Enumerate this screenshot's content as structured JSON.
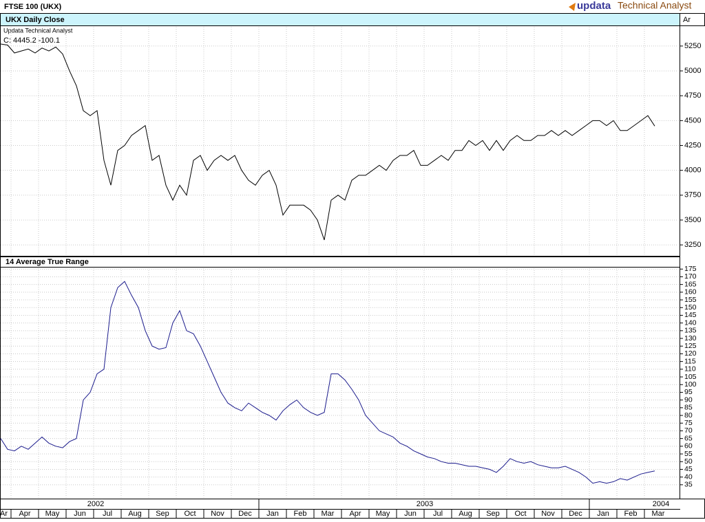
{
  "header": {
    "title": "FTSE 100 (UKX)",
    "logo_brand": "updata",
    "logo_product": "Technical Analyst",
    "axis_header": "Ar",
    "source": "Updata Technical Analyst",
    "readout": "C: 4445.2 -100.1"
  },
  "chart_data": [
    {
      "type": "line",
      "title": "UKX Daily Close",
      "categories": [
        "Ar",
        null,
        "Apr",
        null,
        null,
        null,
        "May",
        null,
        null,
        null,
        "Jun",
        null,
        null,
        null,
        "Jul",
        null,
        null,
        null,
        "Aug",
        null,
        null,
        null,
        "Sep",
        null,
        null,
        null,
        "Oct",
        null,
        null,
        null,
        "Nov",
        null,
        null,
        null,
        "Dec",
        null,
        null,
        null,
        "Jan",
        null,
        null,
        null,
        "Feb",
        null,
        null,
        null,
        "Mar",
        null,
        null,
        null,
        "Apr",
        null,
        null,
        null,
        "May",
        null,
        null,
        null,
        "Jun",
        null,
        null,
        null,
        "Jul",
        null,
        null,
        null,
        "Aug",
        null,
        null,
        null,
        "Sep",
        null,
        null,
        null,
        "Oct",
        null,
        null,
        null,
        "Nov",
        null,
        null,
        null,
        "Dec",
        null,
        null,
        null,
        "Jan",
        null,
        null,
        null,
        "Feb",
        null,
        null,
        null,
        "Mar",
        null,
        null,
        null
      ],
      "series": [
        {
          "name": "UKX",
          "color": "#000000",
          "values": [
            5270,
            5260,
            5180,
            5200,
            5220,
            5180,
            5230,
            5200,
            5240,
            5170,
            5000,
            4850,
            4600,
            4550,
            4600,
            4100,
            3850,
            4200,
            4250,
            4350,
            4400,
            4450,
            4100,
            4150,
            3850,
            3700,
            3850,
            3750,
            4100,
            4150,
            4000,
            4100,
            4150,
            4100,
            4150,
            4000,
            3900,
            3850,
            3950,
            4000,
            3850,
            3550,
            3650,
            3650,
            3650,
            3600,
            3500,
            3300,
            3700,
            3750,
            3700,
            3900,
            3950,
            3950,
            4000,
            4050,
            4000,
            4100,
            4150,
            4150,
            4200,
            4050,
            4050,
            4100,
            4150,
            4100,
            4200,
            4200,
            4300,
            4250,
            4300,
            4200,
            4300,
            4200,
            4300,
            4350,
            4300,
            4300,
            4350,
            4350,
            4400,
            4350,
            4400,
            4350,
            4400,
            4450,
            4500,
            4500,
            4450,
            4500,
            4400,
            4400,
            4450,
            4500,
            4550,
            4445.2,
            null,
            null
          ]
        }
      ],
      "ylim": [
        3140,
        5450
      ],
      "yticks": [
        3250,
        3500,
        3750,
        4000,
        4250,
        4500,
        4750,
        5000,
        5250
      ],
      "grid": true
    },
    {
      "type": "line",
      "title": "14 Average True Range",
      "categories": [
        "Ar",
        null,
        "Apr",
        null,
        null,
        null,
        "May",
        null,
        null,
        null,
        "Jun",
        null,
        null,
        null,
        "Jul",
        null,
        null,
        null,
        "Aug",
        null,
        null,
        null,
        "Sep",
        null,
        null,
        null,
        "Oct",
        null,
        null,
        null,
        "Nov",
        null,
        null,
        null,
        "Dec",
        null,
        null,
        null,
        "Jan",
        null,
        null,
        null,
        "Feb",
        null,
        null,
        null,
        "Mar",
        null,
        null,
        null,
        "Apr",
        null,
        null,
        null,
        "May",
        null,
        null,
        null,
        "Jun",
        null,
        null,
        null,
        "Jul",
        null,
        null,
        null,
        "Aug",
        null,
        null,
        null,
        "Sep",
        null,
        null,
        null,
        "Oct",
        null,
        null,
        null,
        "Nov",
        null,
        null,
        null,
        "Dec",
        null,
        null,
        null,
        "Jan",
        null,
        null,
        null,
        "Feb",
        null,
        null,
        null,
        "Mar",
        null,
        null,
        null
      ],
      "x_year_labels": [
        "2002",
        "2003",
        "2004"
      ],
      "series": [
        {
          "name": "ATR",
          "color": "#1a1a8c",
          "values": [
            65,
            58,
            57,
            60,
            58,
            62,
            66,
            62,
            60,
            59,
            63,
            65,
            90,
            95,
            107,
            110,
            150,
            163,
            167,
            158,
            150,
            135,
            125,
            123,
            124,
            140,
            148,
            135,
            133,
            125,
            115,
            105,
            95,
            88,
            85,
            83,
            88,
            85,
            82,
            80,
            77,
            83,
            87,
            90,
            85,
            82,
            80,
            82,
            107,
            107,
            103,
            97,
            90,
            80,
            75,
            70,
            68,
            66,
            62,
            60,
            57,
            55,
            53,
            52,
            50,
            49,
            49,
            48,
            47,
            47,
            46,
            45,
            43,
            47,
            52,
            50,
            49,
            50,
            48,
            47,
            46,
            46,
            47,
            45,
            43,
            40,
            36,
            37,
            36,
            37,
            39,
            38,
            40,
            42,
            43,
            44,
            null,
            null
          ]
        }
      ],
      "ylim": [
        26,
        176
      ],
      "yticks": [
        35,
        40,
        45,
        50,
        55,
        60,
        65,
        70,
        75,
        80,
        85,
        90,
        95,
        100,
        105,
        110,
        115,
        120,
        125,
        130,
        135,
        140,
        145,
        150,
        155,
        160,
        165,
        170,
        175
      ],
      "grid": true
    }
  ]
}
